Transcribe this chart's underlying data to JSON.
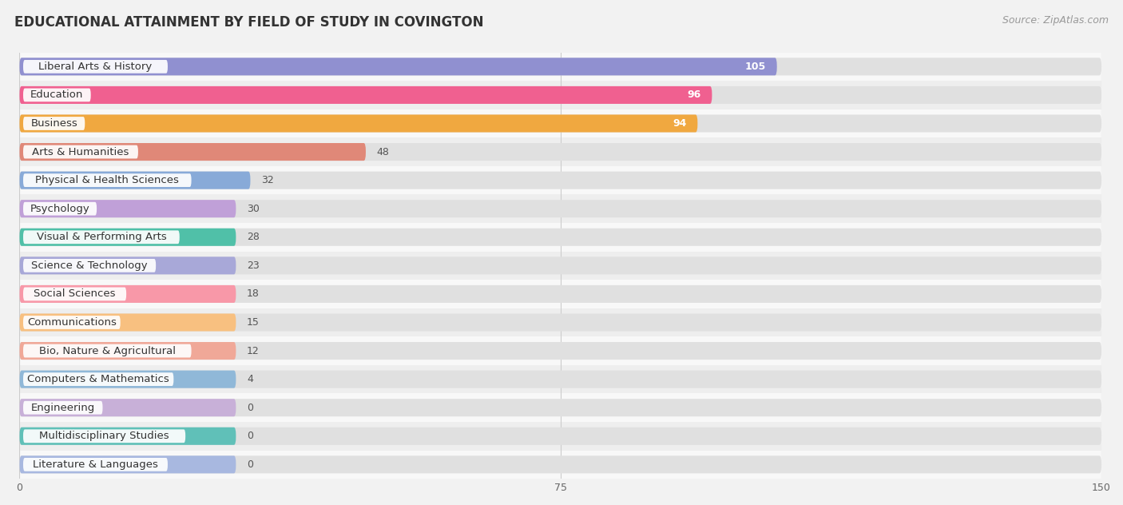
{
  "title": "EDUCATIONAL ATTAINMENT BY FIELD OF STUDY IN COVINGTON",
  "source": "Source: ZipAtlas.com",
  "categories": [
    "Liberal Arts & History",
    "Education",
    "Business",
    "Arts & Humanities",
    "Physical & Health Sciences",
    "Psychology",
    "Visual & Performing Arts",
    "Science & Technology",
    "Social Sciences",
    "Communications",
    "Bio, Nature & Agricultural",
    "Computers & Mathematics",
    "Engineering",
    "Multidisciplinary Studies",
    "Literature & Languages"
  ],
  "values": [
    105,
    96,
    94,
    48,
    32,
    30,
    28,
    23,
    18,
    15,
    12,
    4,
    0,
    0,
    0
  ],
  "bar_colors": [
    "#9090d0",
    "#f06090",
    "#f0a840",
    "#e08878",
    "#88aad8",
    "#c0a0d8",
    "#50c0a8",
    "#a8a8d8",
    "#f898a8",
    "#f8c080",
    "#f0a898",
    "#90b8d8",
    "#c8b0d8",
    "#60c0b8",
    "#a8b8e0"
  ],
  "xlim": [
    0,
    150
  ],
  "xticks": [
    0,
    75,
    150
  ],
  "bg_color": "#f2f2f2",
  "row_bg_light": "#f8f8f8",
  "row_bg_dark": "#eeeeee",
  "bar_bg_color": "#e0e0e0",
  "title_fontsize": 12,
  "source_fontsize": 9,
  "bar_height": 0.62,
  "label_fontsize": 9.5,
  "value_fontsize": 9,
  "min_bar_width": 30
}
